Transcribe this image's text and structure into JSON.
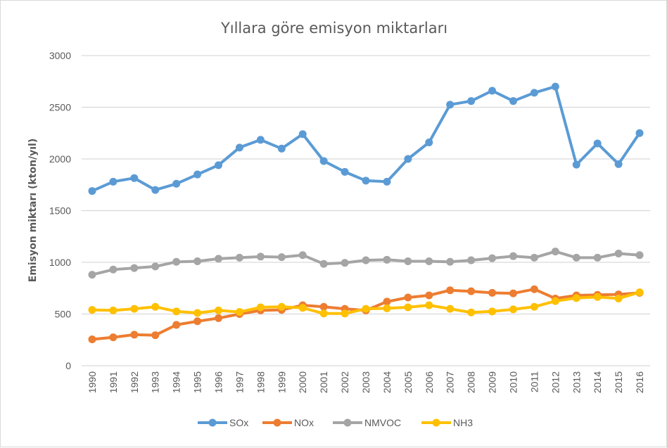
{
  "chart_data": {
    "type": "line",
    "title": "Yıllara göre emisyon miktarları",
    "xlabel": "",
    "ylabel": "Emisyon miktarı (kton/yıl)",
    "ylim": [
      0,
      3000
    ],
    "yticks": [
      0,
      500,
      1000,
      1500,
      2000,
      2500,
      3000
    ],
    "grid": true,
    "legend_position": "bottom",
    "categories": [
      "1990",
      "1991",
      "1992",
      "1993",
      "1994",
      "1995",
      "1996",
      "1997",
      "1998",
      "1999",
      "2000",
      "2001",
      "2002",
      "2003",
      "2004",
      "2005",
      "2006",
      "2007",
      "2008",
      "2009",
      "2010",
      "2011",
      "2012",
      "2013",
      "2014",
      "2015",
      "2016"
    ],
    "series": [
      {
        "name": "SOx",
        "color": "#5b9bd5",
        "values": [
          1690,
          1780,
          1815,
          1700,
          1760,
          1850,
          1940,
          2110,
          2185,
          2100,
          2240,
          1980,
          1875,
          1790,
          1780,
          2000,
          2160,
          2525,
          2560,
          2660,
          2560,
          2640,
          2700,
          1945,
          2150,
          1950,
          2250
        ]
      },
      {
        "name": "NOx",
        "color": "#ed7d31",
        "values": [
          255,
          275,
          300,
          295,
          395,
          430,
          460,
          500,
          535,
          540,
          585,
          570,
          550,
          535,
          620,
          660,
          680,
          730,
          720,
          705,
          700,
          740,
          650,
          680,
          685,
          690,
          705
        ]
      },
      {
        "name": "NMVOC",
        "color": "#a5a5a5",
        "values": [
          880,
          930,
          945,
          960,
          1005,
          1010,
          1035,
          1045,
          1055,
          1050,
          1070,
          985,
          995,
          1020,
          1025,
          1010,
          1010,
          1005,
          1020,
          1040,
          1060,
          1045,
          1105,
          1045,
          1045,
          1085,
          1070
        ]
      },
      {
        "name": "NH3",
        "color": "#ffc000",
        "values": [
          540,
          535,
          550,
          570,
          525,
          510,
          535,
          520,
          565,
          570,
          560,
          505,
          505,
          550,
          555,
          565,
          585,
          550,
          515,
          525,
          545,
          570,
          625,
          655,
          665,
          650,
          710
        ]
      }
    ]
  }
}
